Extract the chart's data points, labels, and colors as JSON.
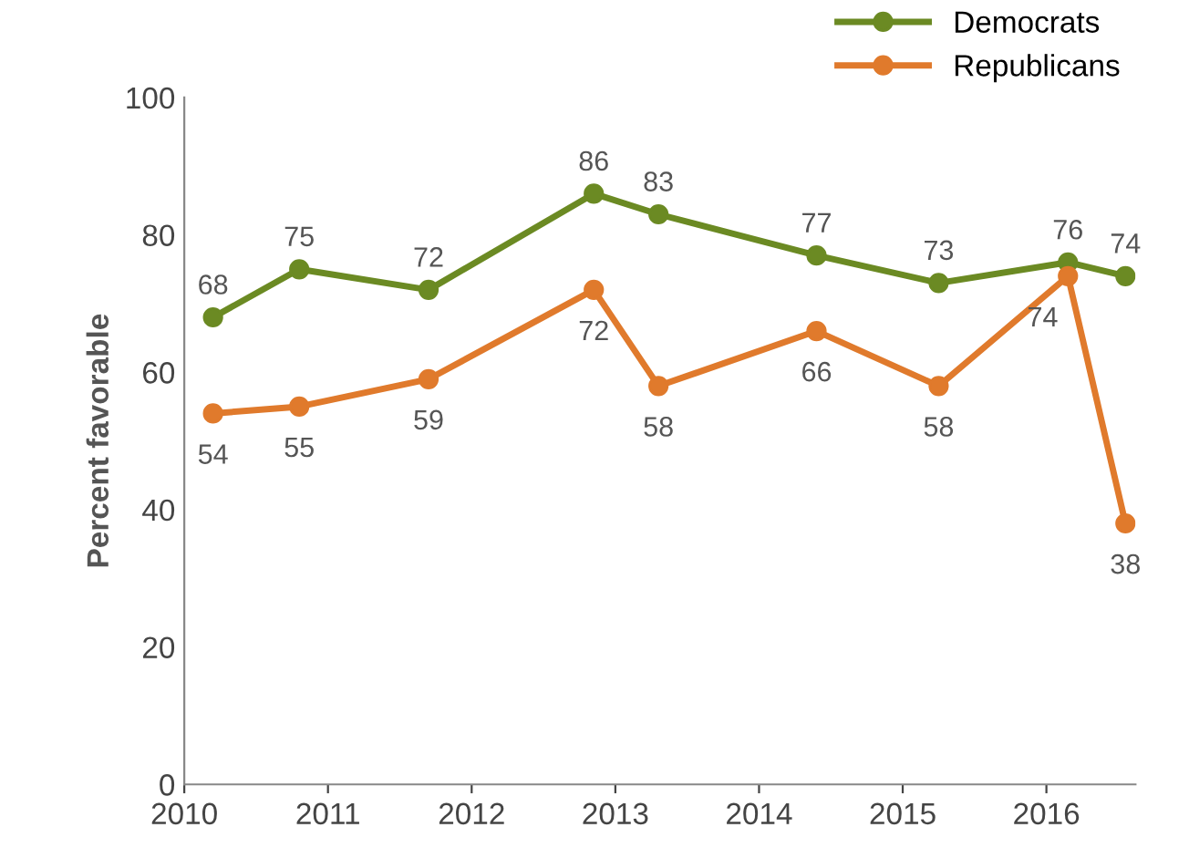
{
  "chart_data": {
    "type": "line",
    "ylabel": "Percent favorable",
    "x": [
      2010.2,
      2010.8,
      2011.7,
      2012.85,
      2013.3,
      2014.4,
      2015.25,
      2016.15,
      2016.55
    ],
    "series": [
      {
        "name": "Democrats",
        "color": "#6b8a23",
        "values": [
          68,
          75,
          72,
          86,
          83,
          77,
          73,
          76,
          74
        ]
      },
      {
        "name": "Republicans",
        "color": "#e07a2c",
        "values": [
          54,
          55,
          59,
          72,
          58,
          66,
          58,
          74,
          38
        ]
      }
    ],
    "xlim": [
      2010,
      2016.62
    ],
    "xticks": [
      2010,
      2011,
      2012,
      2013,
      2014,
      2015,
      2016
    ],
    "ylim": [
      0,
      100
    ],
    "yticks": [
      0,
      20,
      40,
      60,
      80,
      100
    ],
    "grid": false,
    "legend": "top right",
    "marker": "circle",
    "line_style": "solid",
    "data_labels": true
  }
}
